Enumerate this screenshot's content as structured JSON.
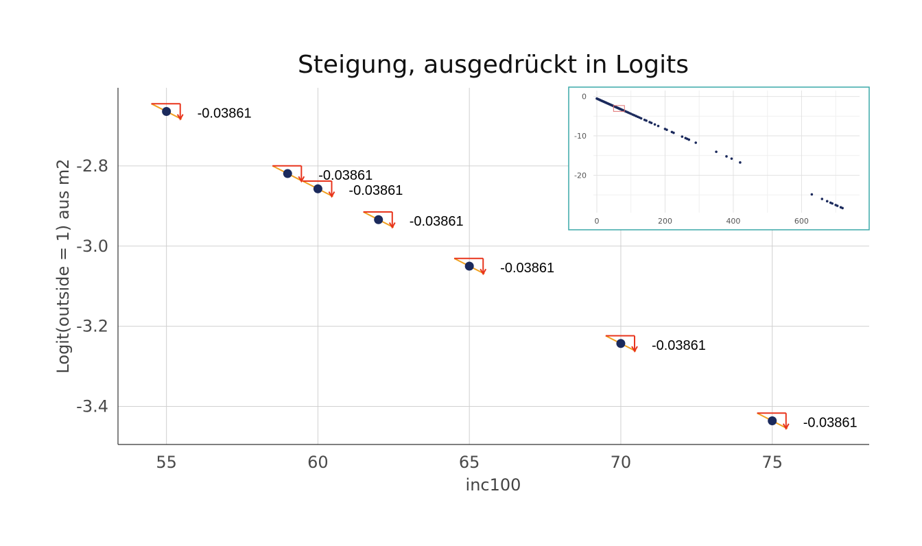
{
  "chart_data": [
    {
      "type": "scatter",
      "title": "Steigung, ausgedrückt in Logits",
      "xlabel": "inc100",
      "ylabel": "Logit(outside = 1) aus m2",
      "xlim": [
        53.4,
        78.2
      ],
      "ylim": [
        -3.495,
        -2.605
      ],
      "xticks": [
        55,
        60,
        65,
        70,
        75
      ],
      "yticks": [
        -2.8,
        -3.0,
        -3.2,
        -3.4
      ],
      "ytick_labels": [
        "-2.8",
        "-3.0",
        "-3.2",
        "-3.4"
      ],
      "grid": true,
      "slope": -0.03861,
      "points": [
        {
          "x": 55,
          "y": -2.664,
          "label": "-0.03861"
        },
        {
          "x": 59,
          "y": -2.819,
          "label": "-0.03861"
        },
        {
          "x": 60,
          "y": -2.857,
          "label": "-0.03861"
        },
        {
          "x": 62,
          "y": -2.934,
          "label": "-0.03861"
        },
        {
          "x": 65,
          "y": -3.05,
          "label": "-0.03861"
        },
        {
          "x": 70,
          "y": -3.243,
          "label": "-0.03861"
        },
        {
          "x": 75,
          "y": -3.436,
          "label": "-0.03861"
        }
      ],
      "colors": {
        "point": "#1b2a5c",
        "triangle_h": "#e8341c",
        "triangle_v": "#e8341c",
        "triangle_hyp": "#f0a020",
        "grid": "#d0d0d0",
        "axis": "#333333"
      }
    },
    {
      "type": "scatter",
      "role": "inset",
      "xlim": [
        -10,
        770
      ],
      "ylim": [
        -29.5,
        1.5
      ],
      "xticks": [
        0,
        200,
        400,
        600
      ],
      "yticks": [
        0,
        -10,
        -20
      ],
      "border_color": "#3aa8a8",
      "highlight_color": "#e07070",
      "highlight_region": {
        "x": [
          55,
          75
        ],
        "y": [
          -3.44,
          -2.66
        ]
      },
      "points_x": [
        0,
        2,
        4,
        6,
        8,
        10,
        12,
        14,
        16,
        18,
        20,
        22,
        24,
        26,
        28,
        30,
        32,
        34,
        36,
        38,
        40,
        42,
        44,
        46,
        48,
        50,
        52,
        54,
        56,
        58,
        60,
        62,
        64,
        66,
        68,
        70,
        72,
        74,
        76,
        78,
        80,
        84,
        88,
        92,
        96,
        100,
        105,
        110,
        115,
        120,
        125,
        130,
        140,
        145,
        155,
        160,
        170,
        180,
        200,
        205,
        220,
        225,
        250,
        260,
        265,
        270,
        290,
        350,
        380,
        395,
        420,
        630,
        660,
        675,
        685,
        690,
        700,
        705,
        715,
        720
      ],
      "intercept": -0.54,
      "slope": -0.03861,
      "point_color": "#1b2a5c"
    }
  ]
}
